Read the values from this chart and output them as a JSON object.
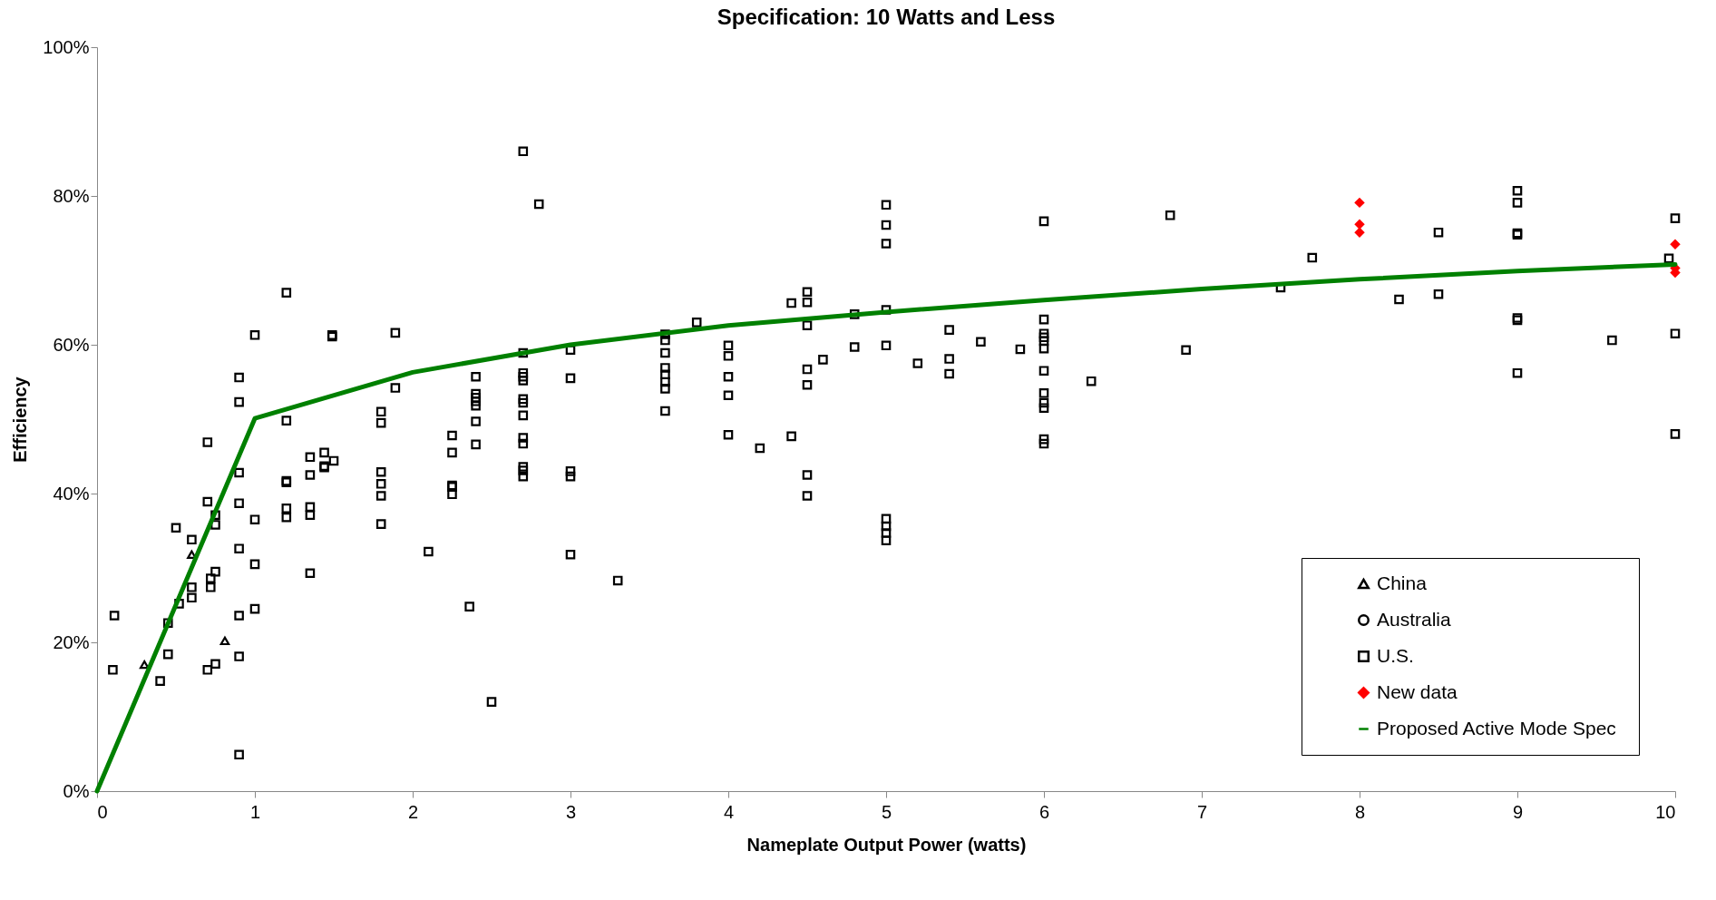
{
  "chart_data": {
    "type": "scatter",
    "title": "Specification:  10 Watts and Less",
    "xlabel": "Nameplate Output Power (watts)",
    "ylabel": "Efficiency",
    "xlim": [
      0,
      10
    ],
    "xticks": [
      0,
      1,
      2,
      3,
      4,
      5,
      6,
      7,
      8,
      9,
      10
    ],
    "ylim": [
      0,
      100
    ],
    "yticks": [
      {
        "value": 0,
        "label": "0%"
      },
      {
        "value": 20,
        "label": "20%"
      },
      {
        "value": 40,
        "label": "40%"
      },
      {
        "value": 60,
        "label": "60%"
      },
      {
        "value": 80,
        "label": "80%"
      },
      {
        "value": 100,
        "label": "100%"
      }
    ],
    "legend": "bottom right",
    "series": [
      {
        "name": "China",
        "type": "scatter",
        "marker": "triangle",
        "color": "#000000",
        "x": [
          0.3,
          0.6,
          0.81
        ],
        "values": [
          17.0,
          31.8,
          20.2
        ]
      },
      {
        "name": "Australia",
        "type": "scatter",
        "marker": "circle",
        "color": "#000000"
      },
      {
        "name": "U.S.",
        "type": "scatter",
        "marker": "square",
        "color": "#000000",
        "x": [
          0.11,
          0.1,
          0.4,
          0.45,
          0.45,
          0.5,
          0.52,
          0.6,
          0.6,
          0.6,
          0.7,
          0.7,
          0.7,
          0.72,
          0.72,
          0.75,
          0.75,
          0.75,
          0.75,
          0.9,
          0.9,
          0.9,
          0.9,
          0.9,
          0.9,
          0.9,
          0.9,
          1.0,
          1.0,
          1.0,
          1.0,
          1.2,
          1.2,
          1.2,
          1.2,
          1.2,
          1.2,
          1.35,
          1.35,
          1.35,
          1.35,
          1.35,
          1.44,
          1.44,
          1.44,
          1.5,
          1.49,
          1.49,
          1.8,
          1.8,
          1.8,
          1.8,
          1.8,
          1.8,
          1.89,
          1.89,
          2.1,
          2.25,
          2.25,
          2.25,
          2.25,
          2.25,
          2.36,
          2.4,
          2.4,
          2.4,
          2.4,
          2.4,
          2.4,
          2.4,
          2.5,
          2.7,
          2.7,
          2.7,
          2.7,
          2.7,
          2.7,
          2.7,
          2.7,
          2.7,
          2.7,
          2.7,
          2.7,
          2.7,
          2.8,
          3.0,
          3.0,
          3.0,
          3.0,
          3.0,
          3.3,
          3.6,
          3.6,
          3.6,
          3.6,
          3.6,
          3.6,
          3.6,
          3.6,
          3.8,
          4.0,
          4.0,
          4.0,
          4.0,
          4.0,
          4.2,
          4.4,
          4.4,
          4.5,
          4.5,
          4.5,
          4.5,
          4.5,
          4.5,
          4.5,
          4.6,
          4.8,
          4.8,
          5.0,
          5.0,
          5.0,
          5.0,
          5.0,
          5.0,
          5.0,
          5.0,
          5.0,
          5.2,
          5.4,
          5.4,
          5.4,
          5.6,
          5.85,
          6.0,
          6.0,
          6.0,
          6.0,
          6.0,
          6.0,
          6.0,
          6.0,
          6.0,
          6.0,
          6.0,
          6.0,
          6.3,
          6.8,
          6.9,
          7.5,
          7.7,
          8.25,
          8.5,
          8.5,
          9.0,
          9.0,
          9.0,
          9.0,
          9.0,
          9.0,
          9.0,
          9.6,
          9.96,
          10.0,
          10.0,
          10.0
        ],
        "values": [
          23.6,
          16.3,
          14.8,
          22.6,
          18.4,
          35.4,
          25.2,
          33.8,
          27.4,
          26.0,
          46.9,
          38.9,
          16.3,
          28.6,
          27.4,
          37.1,
          35.8,
          29.5,
          17.1,
          55.6,
          52.3,
          42.8,
          38.7,
          32.6,
          23.6,
          18.1,
          4.9,
          61.3,
          36.5,
          30.5,
          24.5,
          67.0,
          49.8,
          41.5,
          41.7,
          38.0,
          36.8,
          44.9,
          42.5,
          38.2,
          37.1,
          29.3,
          45.5,
          43.7,
          43.5,
          44.4,
          61.3,
          61.1,
          51.0,
          49.5,
          42.9,
          41.3,
          39.7,
          35.9,
          61.6,
          54.2,
          32.2,
          47.8,
          45.5,
          41.1,
          40.9,
          39.9,
          24.8,
          55.7,
          53.4,
          52.9,
          52.4,
          51.8,
          49.7,
          46.6,
          12.0,
          86.0,
          58.9,
          56.2,
          55.7,
          55.2,
          52.7,
          52.2,
          50.5,
          47.5,
          46.7,
          43.6,
          43.1,
          42.3,
          78.9,
          59.3,
          55.5,
          43.0,
          42.3,
          31.8,
          28.3,
          61.4,
          60.6,
          58.9,
          56.9,
          56.0,
          55.0,
          54.1,
          51.1,
          63.0,
          59.9,
          58.5,
          55.7,
          53.2,
          47.9,
          46.1,
          65.6,
          47.7,
          67.1,
          65.7,
          62.6,
          56.7,
          54.6,
          42.5,
          39.7,
          58.0,
          64.1,
          59.7,
          78.8,
          76.1,
          73.6,
          64.7,
          59.9,
          36.6,
          35.6,
          34.7,
          33.7,
          57.5,
          62.0,
          58.1,
          56.1,
          60.4,
          59.4,
          76.6,
          63.4,
          61.5,
          61.0,
          60.5,
          59.5,
          56.5,
          53.5,
          52.2,
          51.5,
          47.3,
          46.7,
          55.1,
          77.4,
          59.3,
          67.7,
          71.7,
          66.1,
          75.1,
          66.8,
          80.7,
          79.1,
          75.0,
          74.8,
          63.6,
          63.3,
          56.2,
          60.6,
          71.6,
          77.0,
          61.5,
          48.0
        ]
      },
      {
        "name": "New data",
        "type": "scatter",
        "marker": "diamond",
        "color": "#ff0000",
        "x": [
          8.0,
          8.0,
          8.0,
          10.0,
          10.0,
          10.0
        ],
        "values": [
          79.1,
          76.2,
          75.1,
          73.5,
          70.3,
          69.7
        ]
      },
      {
        "name": "Proposed  Active Mode Spec",
        "type": "line",
        "marker": "none",
        "line_style": "solid",
        "color": "#008000",
        "x": [
          0,
          1,
          2,
          3,
          4,
          5,
          6,
          7,
          8,
          9,
          10
        ],
        "values": [
          0,
          50.1,
          56.3,
          60.0,
          62.6,
          64.4,
          66.0,
          67.5,
          68.8,
          69.9,
          70.8
        ]
      }
    ]
  }
}
